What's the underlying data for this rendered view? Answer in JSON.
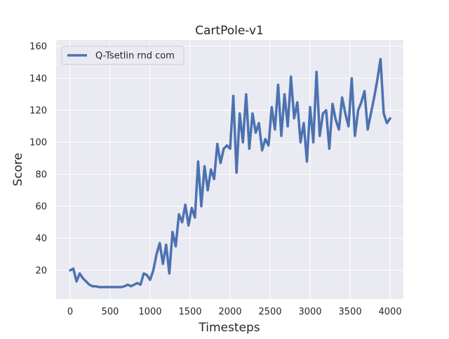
{
  "chart_data": {
    "type": "line",
    "title": "CartPole-v1",
    "x_label": "Timesteps",
    "y_label": "Score",
    "x": [
      0,
      40,
      80,
      120,
      160,
      200,
      240,
      280,
      320,
      360,
      400,
      440,
      480,
      520,
      560,
      600,
      640,
      680,
      720,
      760,
      800,
      840,
      880,
      920,
      960,
      1000,
      1040,
      1080,
      1120,
      1160,
      1200,
      1240,
      1280,
      1320,
      1360,
      1400,
      1440,
      1480,
      1520,
      1560,
      1600,
      1640,
      1680,
      1720,
      1760,
      1800,
      1840,
      1880,
      1920,
      1960,
      2000,
      2040,
      2080,
      2120,
      2160,
      2200,
      2240,
      2280,
      2320,
      2360,
      2400,
      2440,
      2480,
      2520,
      2560,
      2600,
      2640,
      2680,
      2720,
      2760,
      2800,
      2840,
      2880,
      2920,
      2960,
      3000,
      3040,
      3080,
      3120,
      3160,
      3200,
      3240,
      3280,
      3320,
      3360,
      3400,
      3440,
      3480,
      3520,
      3560,
      3600,
      3640,
      3680,
      3720,
      3760,
      3800,
      3840,
      3880,
      3920,
      3960,
      4000
    ],
    "series": [
      {
        "name": "Q-Tsetlin rnd com",
        "color": "#4c72b0",
        "values": [
          20,
          21,
          13,
          18,
          15,
          13,
          11,
          10,
          10,
          9.5,
          9.5,
          9.5,
          9.5,
          9.5,
          9.5,
          9.5,
          9.5,
          10,
          11,
          10,
          11,
          12,
          11,
          18,
          17,
          14,
          20,
          30,
          37,
          24,
          36,
          18,
          44,
          35,
          55,
          50,
          61,
          48,
          59,
          53,
          88,
          60,
          85,
          70,
          83,
          77,
          99,
          87,
          96,
          98,
          96,
          129,
          81,
          118,
          100,
          130,
          96,
          118,
          106,
          112,
          95,
          102,
          98,
          122,
          108,
          136,
          104,
          130,
          110,
          141,
          115,
          125,
          100,
          112,
          88,
          122,
          100,
          144,
          104,
          118,
          120,
          96,
          124,
          114,
          108,
          128,
          118,
          110,
          140,
          104,
          120,
          125,
          132,
          108,
          118,
          128,
          139,
          152,
          118,
          112,
          115
        ]
      }
    ],
    "xlim": [
      -175,
      4166
    ],
    "ylim": [
      2,
      164
    ],
    "xticks": [
      0,
      500,
      1000,
      1500,
      2000,
      2500,
      3000,
      3500,
      4000
    ],
    "yticks": [
      20,
      40,
      60,
      80,
      100,
      120,
      140,
      160
    ],
    "grid": true,
    "legend": "upper-left"
  }
}
